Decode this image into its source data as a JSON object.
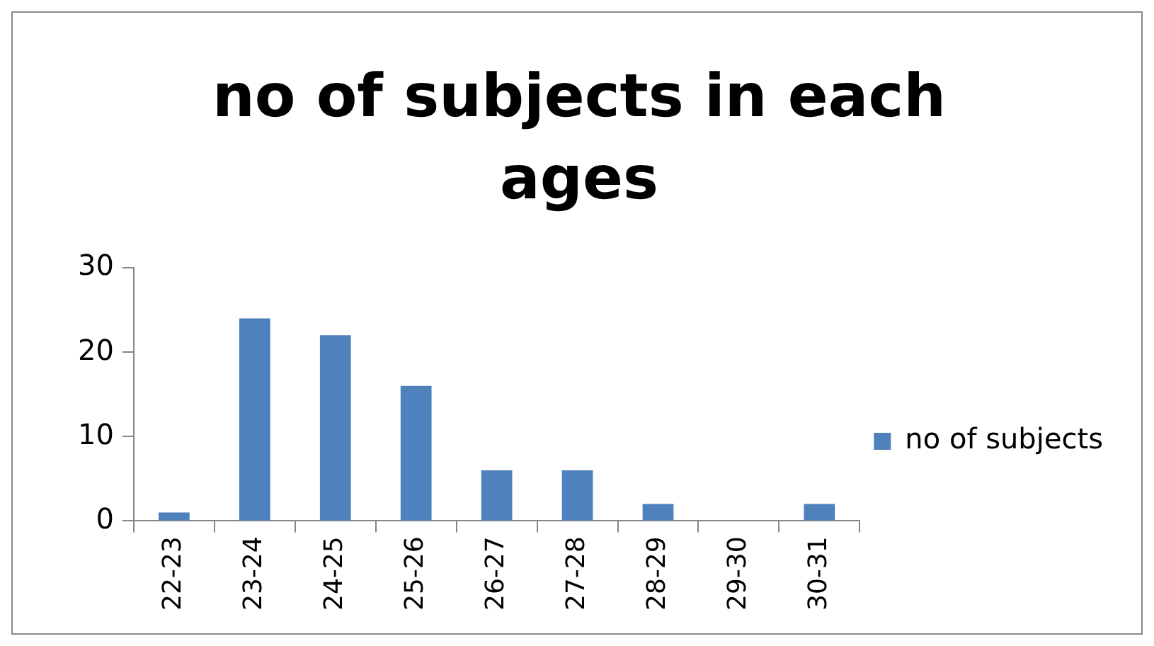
{
  "chart_data": {
    "type": "bar",
    "title": "no of subjects in each ages",
    "categories": [
      "22-23",
      "23-24",
      "24-25",
      "25-26",
      "26-27",
      "27-28",
      "28-29",
      "29-30",
      "30-31"
    ],
    "series": [
      {
        "name": "no of subjects",
        "color": "#4f81bd",
        "values": [
          1,
          24,
          22,
          16,
          6,
          6,
          2,
          0,
          2
        ]
      }
    ],
    "ylim": [
      0,
      30
    ],
    "yticks": [
      0,
      10,
      20,
      30
    ],
    "grid": false,
    "legend": "right"
  }
}
